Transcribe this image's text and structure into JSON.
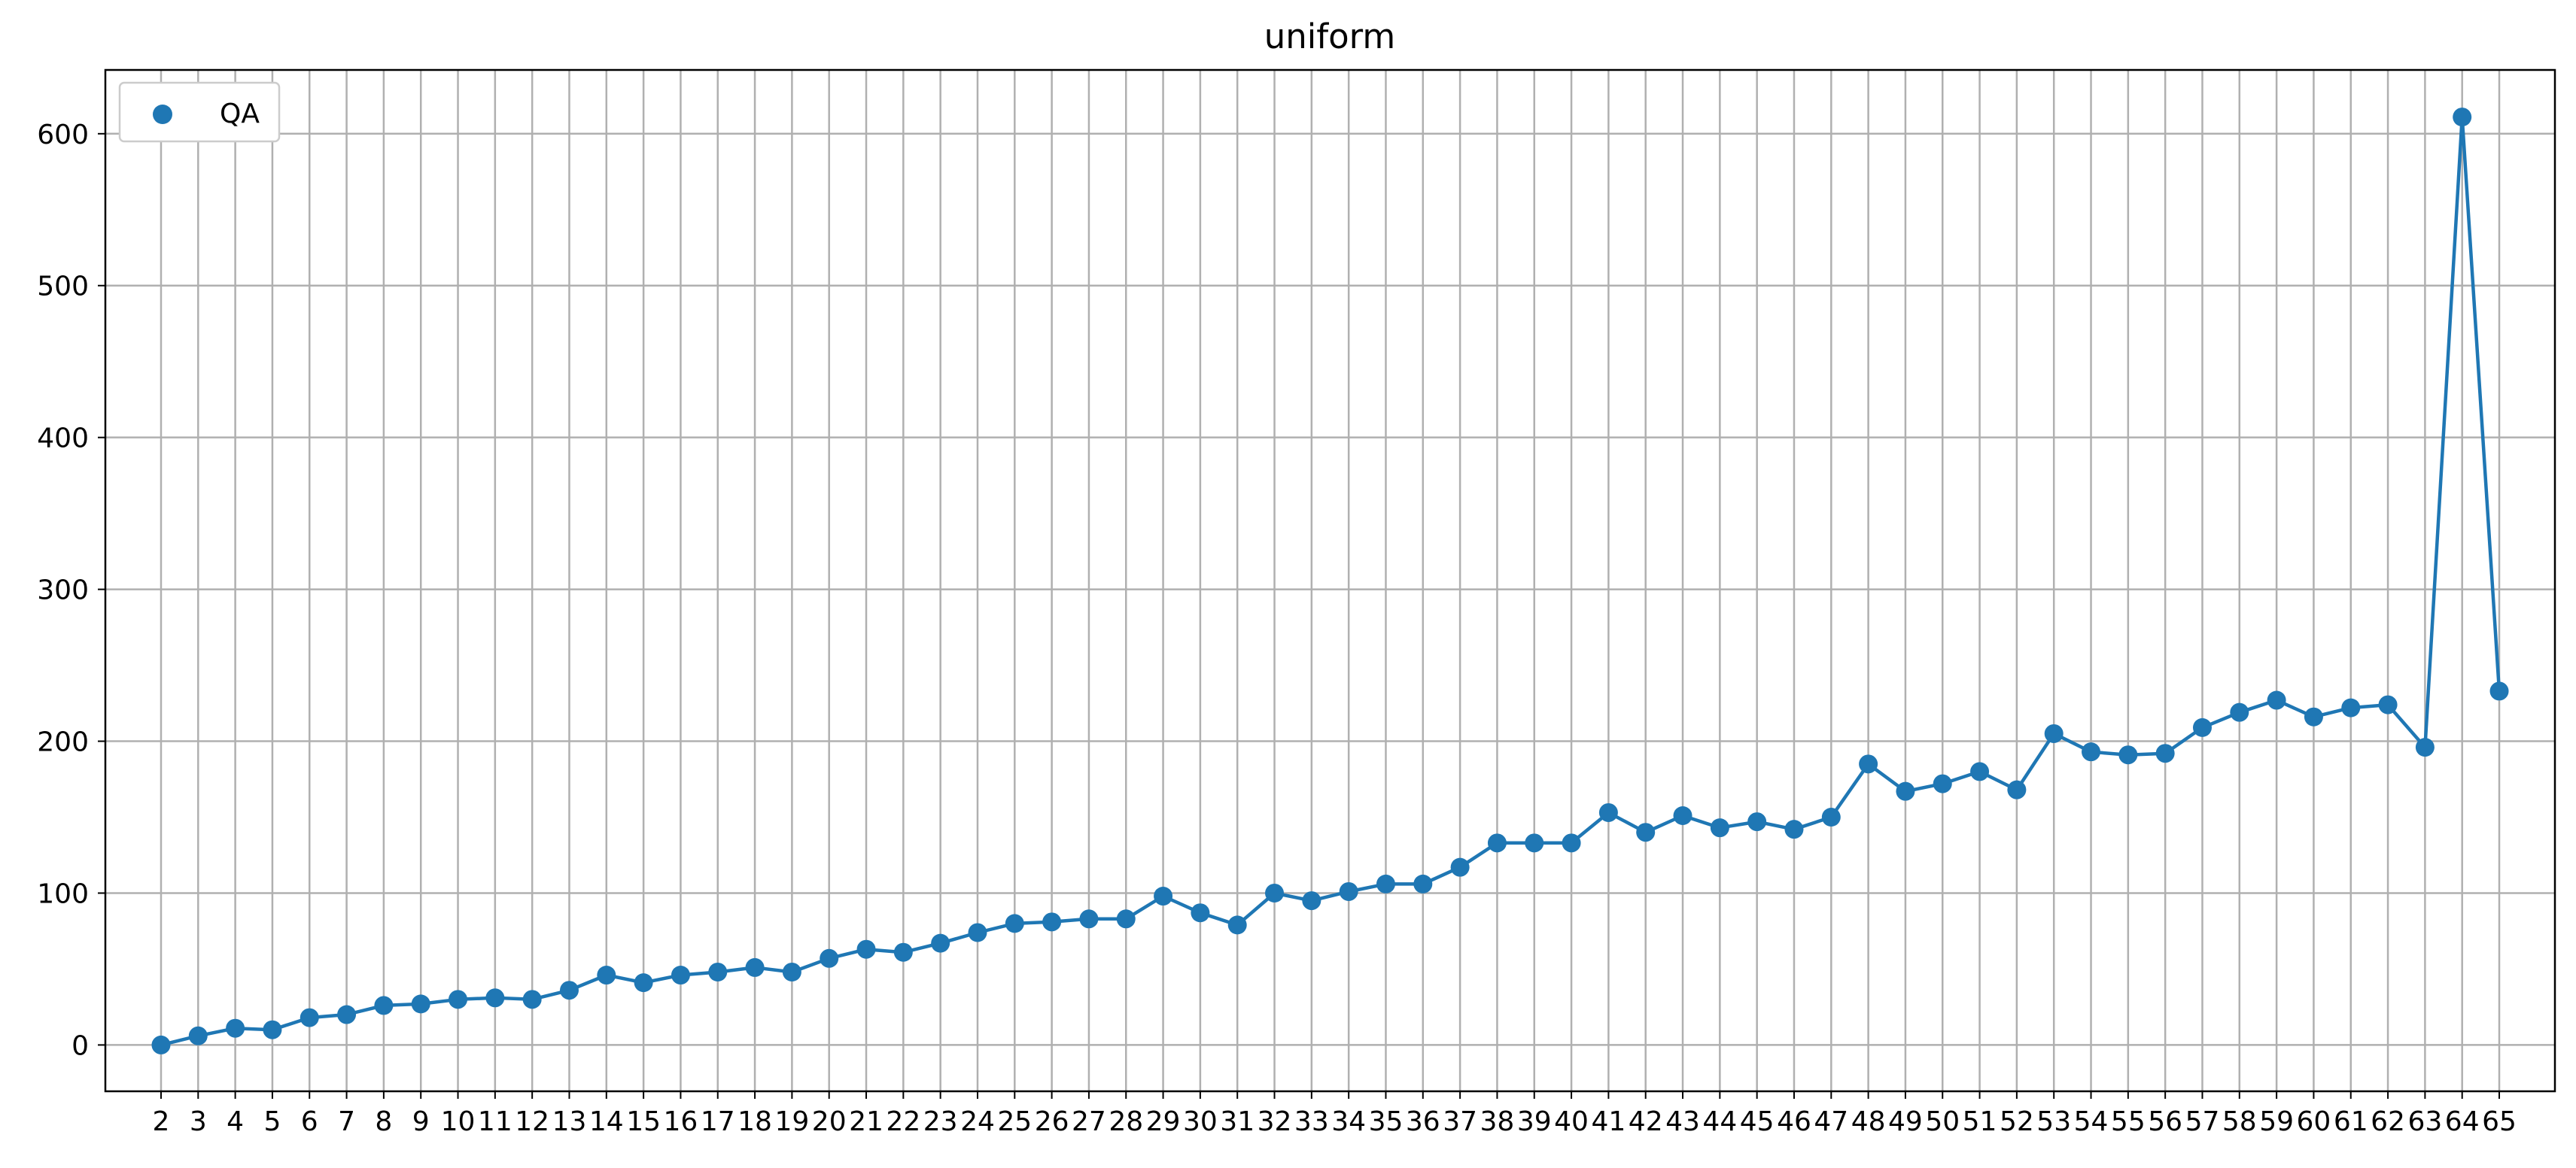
{
  "chart_data": {
    "type": "line",
    "title": "uniform",
    "xlabel": "",
    "ylabel": "",
    "x": [
      2,
      3,
      4,
      5,
      6,
      7,
      8,
      9,
      10,
      11,
      12,
      13,
      14,
      15,
      16,
      17,
      18,
      19,
      20,
      21,
      22,
      23,
      24,
      25,
      26,
      27,
      28,
      29,
      30,
      31,
      32,
      33,
      34,
      35,
      36,
      37,
      38,
      39,
      40,
      41,
      42,
      43,
      44,
      45,
      46,
      47,
      48,
      49,
      50,
      51,
      52,
      53,
      54,
      55,
      56,
      57,
      58,
      59,
      60,
      61,
      62,
      63,
      64,
      65
    ],
    "series": [
      {
        "name": "QA",
        "color": "#1f77b4",
        "marker": "circle",
        "values": [
          0,
          6,
          11,
          10,
          18,
          20,
          26,
          27,
          30,
          31,
          30,
          36,
          46,
          41,
          46,
          48,
          51,
          48,
          57,
          63,
          61,
          67,
          74,
          80,
          81,
          83,
          83,
          98,
          87,
          79,
          100,
          95,
          101,
          106,
          106,
          117,
          133,
          133,
          133,
          153,
          140,
          151,
          143,
          147,
          142,
          150,
          185,
          167,
          172,
          180,
          168,
          205,
          193,
          191,
          192,
          209,
          219,
          227,
          216,
          222,
          224,
          196,
          611,
          233
        ]
      }
    ],
    "xtick_labels": [
      "2",
      "3",
      "4",
      "5",
      "6",
      "7",
      "8",
      "9",
      "10",
      "11",
      "12",
      "13",
      "14",
      "15",
      "16",
      "17",
      "18",
      "19",
      "20",
      "21",
      "22",
      "23",
      "24",
      "25",
      "26",
      "27",
      "28",
      "29",
      "30",
      "31",
      "32",
      "33",
      "34",
      "35",
      "36",
      "37",
      "38",
      "39",
      "40",
      "41",
      "42",
      "43",
      "44",
      "45",
      "46",
      "47",
      "48",
      "49",
      "50",
      "51",
      "52",
      "53",
      "54",
      "55",
      "56",
      "57",
      "58",
      "59",
      "60",
      "61",
      "62",
      "63",
      "64",
      "65"
    ],
    "ytick_labels": [
      "0",
      "100",
      "200",
      "300",
      "400",
      "500",
      "600"
    ],
    "yticks": [
      0,
      100,
      200,
      300,
      400,
      500,
      600
    ],
    "xlim": [
      0.5,
      66.5
    ],
    "ylim": [
      -30.5,
      642
    ],
    "grid": true,
    "legend_position": "upper-left"
  }
}
